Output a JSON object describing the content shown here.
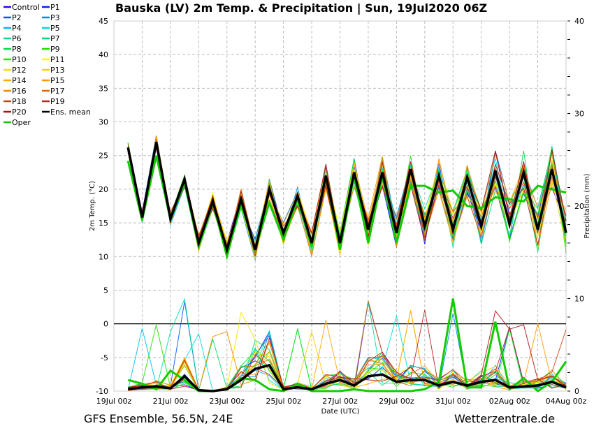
{
  "chart_data": {
    "type": "line",
    "title": "Bauska  (LV)  2m Temp. & Precipitation | Sun, 19Jul2020 06Z",
    "xlabel": "Date (UTC)",
    "ylabel": "2m Temp. (°C)",
    "ylabel_right": "Precipitation (mm)",
    "ylim": [
      -10,
      45
    ],
    "ylim_right": [
      0,
      40
    ],
    "yticks": [
      "45",
      "40",
      "35",
      "30",
      "25",
      "20",
      "15",
      "10",
      "5",
      "0",
      "-5",
      "-10"
    ],
    "yticks_right": [
      "40",
      "30",
      "20",
      "10",
      "0"
    ],
    "xticks": [
      "19Jul 00z",
      "21Jul 00z",
      "23Jul 00z",
      "25Jul 00z",
      "27Jul 00z",
      "29Jul 00z",
      "31Jul 00z",
      "02Aug 00z",
      "04Aug 00z"
    ],
    "xlim_hours": [
      0,
      384
    ],
    "grid": true,
    "legend_placement": "outside-top-left",
    "footer_left": "GFS Ensemble, 56.5N, 24E",
    "footer_right": "Wetterzentrale.de",
    "x_hours": [
      12,
      24,
      36,
      48,
      60,
      72,
      84,
      96,
      108,
      120,
      132,
      144,
      156,
      168,
      180,
      192,
      204,
      216,
      228,
      240,
      252,
      264,
      276,
      288,
      300,
      312,
      324,
      336,
      348,
      360,
      372,
      384
    ],
    "temp_mean": [
      26.2,
      15.8,
      27.0,
      15.6,
      21.5,
      12.0,
      18.2,
      11.0,
      18.5,
      11.0,
      20.0,
      13.5,
      19.0,
      12.0,
      22.0,
      12.0,
      22.5,
      14.0,
      22.5,
      13.5,
      23.0,
      14.5,
      22.0,
      14.0,
      21.8,
      14.5,
      22.8,
      14.8,
      22.5,
      14.0,
      23.0,
      13.5
    ],
    "precip_mean": [
      0.2,
      0.4,
      0.5,
      0.3,
      1.6,
      0.1,
      0.0,
      0.2,
      1.2,
      2.4,
      2.8,
      0.2,
      0.4,
      0.2,
      0.8,
      1.2,
      0.6,
      1.6,
      1.8,
      1.0,
      1.2,
      1.2,
      0.6,
      1.0,
      0.6,
      1.0,
      1.2,
      0.4,
      0.5,
      0.6,
      1.0,
      0.4
    ],
    "oper_temp": [
      24.2,
      15.4,
      25.0,
      15.5,
      21.0,
      11.5,
      18.0,
      10.0,
      18.0,
      11.0,
      18.0,
      12.5,
      18.5,
      11.5,
      22.0,
      11.0,
      22.0,
      12.0,
      22.0,
      12.0,
      20.5,
      20.5,
      19.5,
      19.8,
      17.5,
      17.2,
      18.8,
      18.5,
      18.2,
      20.5,
      20.0,
      19.5
    ],
    "oper_precip": [
      1.2,
      0.8,
      0.2,
      2.2,
      1.2,
      0.0,
      0.0,
      0.2,
      1.4,
      1.2,
      0.2,
      0.0,
      0.8,
      0.0,
      0.0,
      0.0,
      0.2,
      0.0,
      0.0,
      0.0,
      0.0,
      0.2,
      1.0,
      10.0,
      0.4,
      0.4,
      7.5,
      0.2,
      1.4,
      0.0,
      1.0,
      3.2
    ],
    "members": [
      {
        "name": "Control",
        "color": "#3300ff"
      },
      {
        "name": "P1",
        "color": "#0022ff"
      },
      {
        "name": "P2",
        "color": "#0055ff"
      },
      {
        "name": "P3",
        "color": "#0088ee"
      },
      {
        "name": "P4",
        "color": "#00bbee"
      },
      {
        "name": "P5",
        "color": "#00dddd"
      },
      {
        "name": "P6",
        "color": "#00dd99"
      },
      {
        "name": "P7",
        "color": "#00dd66"
      },
      {
        "name": "P8",
        "color": "#00dd44"
      },
      {
        "name": "P9",
        "color": "#22dd00"
      },
      {
        "name": "P10",
        "color": "#11ee11"
      },
      {
        "name": "P11",
        "color": "#ffff00"
      },
      {
        "name": "P12",
        "color": "#ffdd00"
      },
      {
        "name": "P13",
        "color": "#ffcc00"
      },
      {
        "name": "P14",
        "color": "#ffaa00"
      },
      {
        "name": "P15",
        "color": "#ff9900"
      },
      {
        "name": "P16",
        "color": "#ee8800"
      },
      {
        "name": "P17",
        "color": "#dd6600"
      },
      {
        "name": "P18",
        "color": "#cc4411"
      },
      {
        "name": "P19",
        "color": "#bb2222"
      },
      {
        "name": "P20",
        "color": "#aa1111"
      },
      {
        "name": "Ens. mean",
        "color": "#000000"
      },
      {
        "name": "Oper",
        "color": "#11cc00"
      }
    ]
  }
}
